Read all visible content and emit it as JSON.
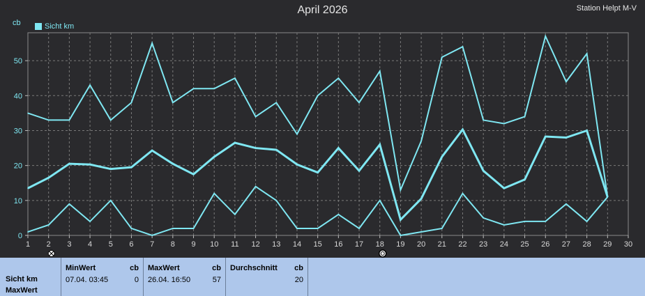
{
  "header": {
    "title": "April 2026",
    "station": "Station Helpt M-V",
    "unit": "cb"
  },
  "legend": {
    "label": "Sicht km",
    "color": "#7fe7f2"
  },
  "chart_data": {
    "type": "line",
    "title": "April 2026",
    "ylabel": "cb",
    "x": [
      1,
      2,
      3,
      4,
      5,
      6,
      7,
      8,
      9,
      10,
      11,
      12,
      13,
      14,
      15,
      16,
      17,
      18,
      19,
      20,
      21,
      22,
      23,
      24,
      25,
      26,
      27,
      28,
      29
    ],
    "xlim": [
      1,
      30
    ],
    "ylim": [
      0,
      58
    ],
    "xticks": [
      1,
      2,
      3,
      4,
      5,
      6,
      7,
      8,
      9,
      10,
      11,
      12,
      13,
      14,
      15,
      16,
      17,
      18,
      19,
      20,
      21,
      22,
      23,
      24,
      25,
      26,
      27,
      28,
      29,
      30
    ],
    "yticks": [
      0,
      10,
      20,
      30,
      40,
      50
    ],
    "grid": true,
    "series": [
      {
        "role": "max",
        "values": [
          35,
          33,
          33,
          43,
          33,
          38,
          55,
          38,
          42,
          42,
          45,
          34,
          38,
          29,
          40,
          45,
          38,
          47,
          13,
          27,
          51,
          54,
          33,
          32,
          34,
          57,
          44,
          52,
          11
        ]
      },
      {
        "role": "avg",
        "values": [
          13.5,
          16.5,
          20.5,
          20.3,
          19,
          19.5,
          24.3,
          20.5,
          17.5,
          22.5,
          26.5,
          25,
          24.5,
          20.3,
          18,
          25,
          18.5,
          26,
          4.5,
          10.5,
          22.5,
          30.3,
          18.5,
          13.5,
          16,
          28.3,
          28,
          30,
          11
        ]
      },
      {
        "role": "min",
        "values": [
          1,
          3,
          9,
          4,
          10,
          2,
          0,
          2,
          2,
          12,
          6,
          14,
          10,
          2,
          2,
          6,
          2,
          10,
          0,
          1,
          2,
          12,
          5,
          3,
          4,
          4,
          9,
          4,
          11
        ]
      }
    ],
    "moon_markers": [
      {
        "day": 2,
        "phase": "new-moon-icon"
      },
      {
        "day": 18,
        "phase": "full-moon-icon"
      }
    ]
  },
  "table": {
    "row_title": "Sicht km",
    "row_subtitle": "MaxWert",
    "min": {
      "header": "MinWert",
      "unit": "cb",
      "time": "07.04.  03:45",
      "value": "0"
    },
    "max": {
      "header": "MaxWert",
      "unit": "cb",
      "time": "26.04.  16:50",
      "value": "57"
    },
    "avg": {
      "header": "Durchschnitt",
      "unit": "cb",
      "value": "20"
    }
  }
}
